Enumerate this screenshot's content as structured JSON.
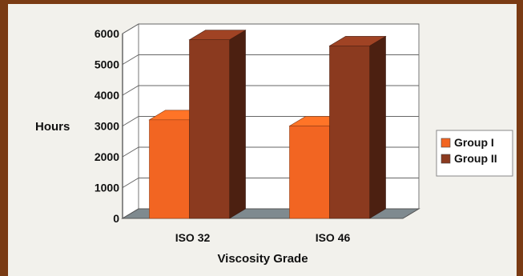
{
  "chart_data": {
    "type": "bar",
    "categories": [
      "ISO 32",
      "ISO 46"
    ],
    "series": [
      {
        "name": "Group I",
        "values": [
          3200,
          3000
        ],
        "color": "#f26522"
      },
      {
        "name": "Group II",
        "values": [
          5800,
          5600
        ],
        "color": "#8b3a1f"
      }
    ],
    "xlabel": "Viscosity Grade",
    "ylabel": "Hours",
    "ylim": [
      0,
      6000
    ],
    "yticks": [
      0,
      1000,
      2000,
      3000,
      4000,
      5000,
      6000
    ],
    "grid": true,
    "legend": "right",
    "style": "3d"
  }
}
